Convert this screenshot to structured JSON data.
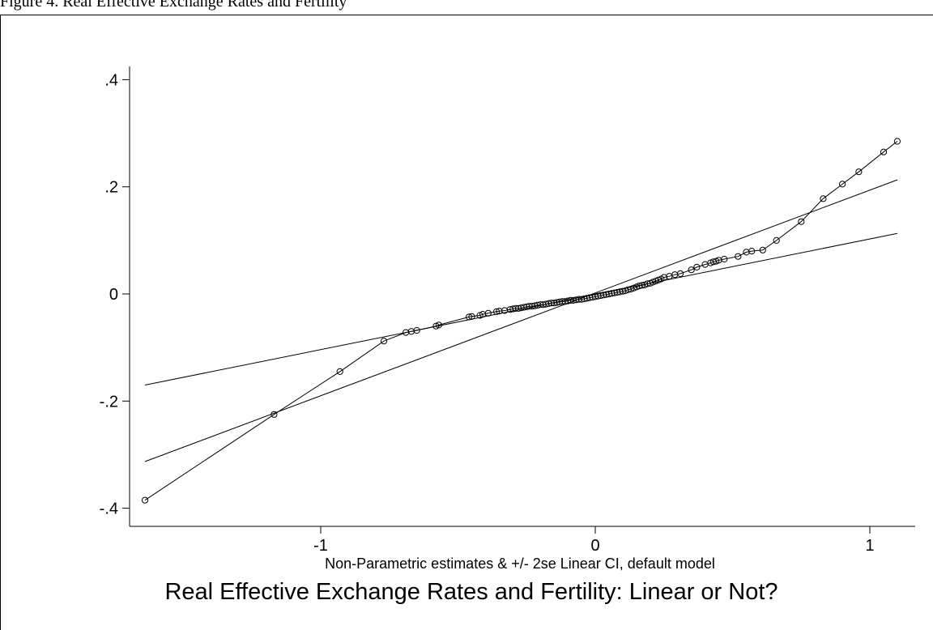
{
  "figure": {
    "caption": "Figure 4. Real Effective Exchange Rates and Fertility"
  },
  "chart_data": {
    "type": "scatter",
    "title": "Real Effective Exchange Rates and Fertility: Linear or Not?",
    "xlabel": "Non-Parametric estimates & +/- 2se Linear CI, default model",
    "ylabel": "",
    "xlim": [
      -1.67,
      1.17
    ],
    "ylim": [
      -0.43,
      0.44
    ],
    "x_ticks": [
      -1,
      0,
      1
    ],
    "x_tick_labels": [
      "-1",
      "0",
      "1"
    ],
    "y_ticks": [
      -0.4,
      -0.2,
      0,
      0.2,
      0.4
    ],
    "y_tick_labels": [
      "-.4",
      "-.2",
      "0",
      ".2",
      ".4"
    ],
    "grid": false,
    "series": [
      {
        "style": "line-with-circles",
        "x": [
          -1.64,
          -1.17,
          -0.93,
          -0.77,
          -0.69,
          -0.67,
          -0.65,
          -0.58,
          -0.57,
          -0.46,
          -0.45,
          -0.42,
          -0.41,
          -0.39,
          -0.36,
          -0.35,
          -0.33,
          -0.31,
          -0.3,
          -0.29,
          -0.28,
          -0.27,
          -0.26,
          -0.25,
          -0.24,
          -0.23,
          -0.22,
          -0.21,
          -0.2,
          -0.19,
          -0.18,
          -0.17,
          -0.16,
          -0.15,
          -0.14,
          -0.13,
          -0.12,
          -0.11,
          -0.1,
          -0.09,
          -0.08,
          -0.07,
          -0.06,
          -0.05,
          -0.04,
          -0.03,
          -0.02,
          -0.01,
          0,
          0.01,
          0.02,
          0.03,
          0.04,
          0.05,
          0.06,
          0.07,
          0.08,
          0.09,
          0.1,
          0.11,
          0.12,
          0.13,
          0.14,
          0.15,
          0.16,
          0.17,
          0.18,
          0.19,
          0.2,
          0.21,
          0.22,
          0.23,
          0.24,
          0.25,
          0.27,
          0.29,
          0.31,
          0.35,
          0.37,
          0.4,
          0.42,
          0.43,
          0.44,
          0.45,
          0.47,
          0.52,
          0.55,
          0.57,
          0.61,
          0.66,
          0.75,
          0.83,
          0.9,
          0.96,
          1.05,
          1.1
        ],
        "y": [
          -0.385,
          -0.225,
          -0.145,
          -0.088,
          -0.072,
          -0.07,
          -0.068,
          -0.06,
          -0.058,
          -0.043,
          -0.042,
          -0.04,
          -0.038,
          -0.036,
          -0.033,
          -0.032,
          -0.031,
          -0.029,
          -0.028,
          -0.027,
          -0.027,
          -0.026,
          -0.025,
          -0.024,
          -0.023,
          -0.023,
          -0.022,
          -0.021,
          -0.02,
          -0.02,
          -0.019,
          -0.018,
          -0.017,
          -0.017,
          -0.016,
          -0.015,
          -0.014,
          -0.014,
          -0.013,
          -0.012,
          -0.012,
          -0.011,
          -0.01,
          -0.01,
          -0.009,
          -0.008,
          -0.007,
          -0.006,
          -0.005,
          -0.004,
          -0.003,
          -0.002,
          -0.001,
          0,
          0.001,
          0.002,
          0.003,
          0.004,
          0.005,
          0.006,
          0.008,
          0.009,
          0.011,
          0.013,
          0.015,
          0.016,
          0.017,
          0.019,
          0.02,
          0.022,
          0.024,
          0.026,
          0.028,
          0.031,
          0.033,
          0.036,
          0.038,
          0.045,
          0.05,
          0.055,
          0.058,
          0.06,
          0.061,
          0.063,
          0.065,
          0.07,
          0.078,
          0.08,
          0.082,
          0.1,
          0.135,
          0.178,
          0.205,
          0.228,
          0.265,
          0.285
        ]
      },
      {
        "style": "line",
        "x": [
          -1.64,
          1.1
        ],
        "y": [
          -0.313,
          0.213
        ]
      },
      {
        "style": "line",
        "x": [
          -1.64,
          1.1
        ],
        "y": [
          -0.17,
          0.113
        ]
      }
    ]
  }
}
